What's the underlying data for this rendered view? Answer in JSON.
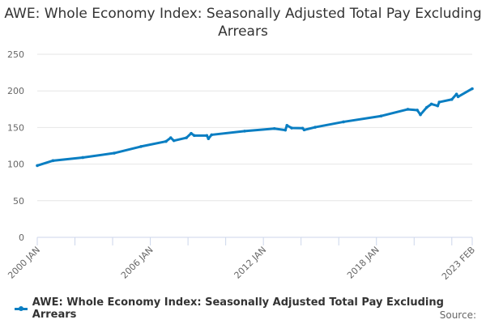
{
  "chart_data": {
    "type": "line",
    "title": "AWE: Whole Economy Index: Seasonally Adjusted Total Pay Excluding Arrears",
    "xlabel": "",
    "ylabel": "",
    "ylim": [
      0,
      250
    ],
    "yticks": [
      "0",
      "50",
      "100",
      "150",
      "200",
      "250"
    ],
    "xrange": [
      "2000 JAN",
      "2023 FEB"
    ],
    "xticks": [
      "2000 JAN",
      "2006 JAN",
      "2012 JAN",
      "2018 JAN",
      "2023 FEB"
    ],
    "grid": true,
    "legend_placement": "bottom-left",
    "color": "#0a7ec2",
    "series": [
      {
        "name": "AWE: Whole Economy Index: Seasonally Adjusted Total Pay Excluding Arrears",
        "points": [
          [
            "2000 JAN",
            98
          ],
          [
            "2000 NOV",
            104.7
          ],
          [
            "2002 JUN",
            109
          ],
          [
            "2004 FEB",
            115
          ],
          [
            "2005 JUL",
            124
          ],
          [
            "2006 NOV",
            131
          ],
          [
            "2007 FEB",
            136
          ],
          [
            "2007 APR",
            132
          ],
          [
            "2007 DEC",
            136
          ],
          [
            "2008 MAR",
            142
          ],
          [
            "2008 MAY",
            139
          ],
          [
            "2009 JAN",
            139
          ],
          [
            "2009 FEB",
            134.7
          ],
          [
            "2009 APR",
            140
          ],
          [
            "2011 JAN",
            145
          ],
          [
            "2012 AUG",
            148.5
          ],
          [
            "2013 MAR",
            146.4
          ],
          [
            "2013 APR",
            152.9
          ],
          [
            "2013 JUL",
            149.3
          ],
          [
            "2014 FEB",
            149
          ],
          [
            "2014 MAR",
            146.7
          ],
          [
            "2014 OCT",
            150.4
          ],
          [
            "2016 APR",
            157.7
          ],
          [
            "2018 APR",
            165.7
          ],
          [
            "2019 SEP",
            174.8
          ],
          [
            "2020 MAR",
            173.7
          ],
          [
            "2020 MAY",
            167.5
          ],
          [
            "2020 SEP",
            177.4
          ],
          [
            "2020 DEC",
            182
          ],
          [
            "2021 APR",
            179.6
          ],
          [
            "2021 MAY",
            184.7
          ],
          [
            "2022 JAN",
            188.3
          ],
          [
            "2022 APR",
            195.6
          ],
          [
            "2022 MAY",
            192
          ],
          [
            "2023 FEB",
            203
          ]
        ]
      }
    ]
  },
  "legend_label": "AWE: Whole Economy Index: Seasonally Adjusted Total Pay Excluding Arrears",
  "source_label": "Source:"
}
